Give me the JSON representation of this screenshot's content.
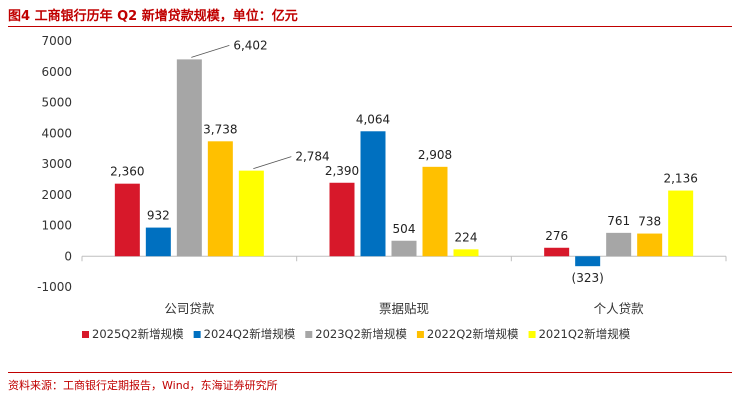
{
  "title": "图4  工商银行历年 Q2 新增贷款规模，单位：亿元",
  "source": "资料来源：工商银行定期报告，Wind，东海证券研究所",
  "chart_data": {
    "type": "bar",
    "categories": [
      "公司贷款",
      "票据贴现",
      "个人贷款"
    ],
    "ylim": [
      -1000,
      7000
    ],
    "yticks": [
      -1000,
      0,
      1000,
      2000,
      3000,
      4000,
      5000,
      6000,
      7000
    ],
    "ytick_labels": [
      "-1000",
      "0",
      "1000",
      "2000",
      "3000",
      "4000",
      "5000",
      "6000",
      "7000"
    ],
    "grid": false,
    "legend_position": "bottom",
    "series": [
      {
        "name": "2025Q2新增规模",
        "color": "#d7182a",
        "values": [
          2360,
          2390,
          276
        ],
        "labels": [
          "2,360",
          "2,390",
          "276"
        ]
      },
      {
        "name": "2024Q2新增规模",
        "color": "#0070c0",
        "values": [
          932,
          4064,
          -323
        ],
        "labels": [
          "932",
          "4,064",
          "(323)"
        ]
      },
      {
        "name": "2023Q2新增规模",
        "color": "#a6a6a6",
        "values": [
          6402,
          504,
          761
        ],
        "labels": [
          "6,402",
          "504",
          "761"
        ]
      },
      {
        "name": "2022Q2新增规模",
        "color": "#ffc000",
        "values": [
          3738,
          2908,
          738
        ],
        "labels": [
          "3,738",
          "2,908",
          "738"
        ]
      },
      {
        "name": "2021Q2新增规模",
        "color": "#ffff00",
        "values": [
          2784,
          224,
          2136
        ],
        "labels": [
          "2,784",
          "224",
          "2,136"
        ]
      }
    ],
    "negative_label_color": "#d7182a"
  }
}
